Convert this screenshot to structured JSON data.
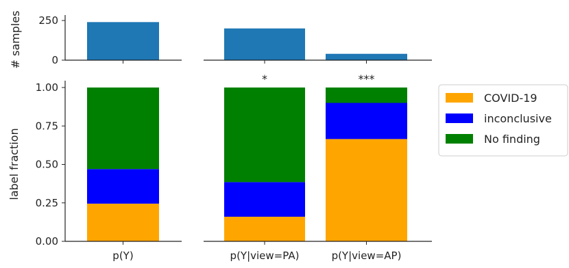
{
  "colors": {
    "bar_count": "#1f77b4",
    "covid": "#ffa500",
    "inconclusive": "#0000ff",
    "no_finding": "#008000",
    "axis": "#222222"
  },
  "chart_data": [
    {
      "type": "bar",
      "panel": "counts",
      "ylabel": "# samples",
      "ylim": [
        0,
        250
      ],
      "yticks": [
        "0",
        "250"
      ],
      "groups": [
        {
          "categories": [
            "p(Y)"
          ],
          "values": [
            240
          ]
        },
        {
          "categories": [
            "p(Y|view=PA)",
            "p(Y|view=AP)"
          ],
          "values": [
            200,
            40
          ]
        }
      ]
    },
    {
      "type": "bar",
      "stacked": true,
      "panel": "fractions",
      "ylabel": "label fraction",
      "ylim": [
        0,
        1
      ],
      "yticks": [
        "0.00",
        "0.25",
        "0.50",
        "0.75",
        "1.00"
      ],
      "legend": [
        "COVID-19",
        "inconclusive",
        "No finding"
      ],
      "legend_position": "right",
      "groups": [
        {
          "categories": [
            "p(Y)"
          ],
          "series": [
            {
              "name": "COVID-19",
              "values": [
                0.245
              ]
            },
            {
              "name": "inconclusive",
              "values": [
                0.225
              ]
            },
            {
              "name": "No finding",
              "values": [
                0.53
              ]
            }
          ],
          "annotations": [
            ""
          ]
        },
        {
          "categories": [
            "p(Y|view=PA)",
            "p(Y|view=AP)"
          ],
          "series": [
            {
              "name": "COVID-19",
              "values": [
                0.16,
                0.665
              ]
            },
            {
              "name": "inconclusive",
              "values": [
                0.225,
                0.235
              ]
            },
            {
              "name": "No finding",
              "values": [
                0.615,
                0.1
              ]
            }
          ],
          "annotations": [
            "*",
            "***"
          ]
        }
      ]
    }
  ]
}
